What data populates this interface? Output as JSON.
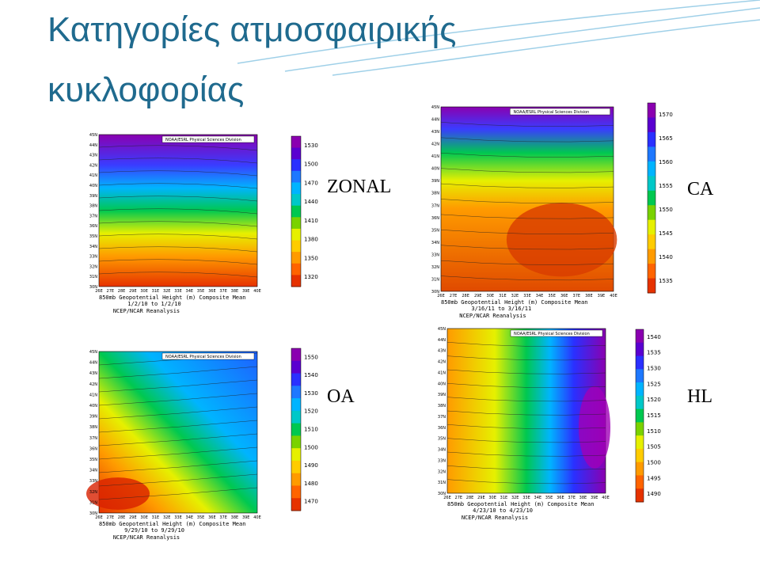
{
  "title": "Κατηγορίες ατμοσφαιρικής κυκλοφορίας",
  "panels": [
    {
      "label": "ZONAL",
      "header": "NOAA/ESRL Physical Sciences Division",
      "caption": "850mb Geopotential Height (m) Composite Mean",
      "dates": "1/2/10 to 1/2/10",
      "source": "NCEP/NCAR Reanalysis",
      "colorbar": [
        "1530",
        "1500",
        "1470",
        "1440",
        "1410",
        "1380",
        "1350",
        "1320"
      ],
      "lat": [
        "45N",
        "44N",
        "43N",
        "42N",
        "41N",
        "40N",
        "39N",
        "38N",
        "37N",
        "36N",
        "35N",
        "34N",
        "33N",
        "32N",
        "31N",
        "30N"
      ],
      "lon": [
        "26E",
        "27E",
        "28E",
        "29E",
        "30E",
        "31E",
        "32E",
        "33E",
        "34E",
        "35E",
        "36E",
        "37E",
        "38E",
        "39E",
        "40E"
      ]
    },
    {
      "label": "CA",
      "header": "NOAA/ESRL Physical Sciences Division",
      "caption": "850mb Geopotential Height (m) Composite Mean",
      "dates": "3/16/11 to 3/16/11",
      "source": "NCEP/NCAR Reanalysis",
      "colorbar": [
        "1570",
        "1565",
        "1560",
        "1555",
        "1550",
        "1545",
        "1540",
        "1535"
      ],
      "lat": [
        "45N",
        "44N",
        "43N",
        "42N",
        "41N",
        "40N",
        "39N",
        "38N",
        "37N",
        "36N",
        "35N",
        "34N",
        "33N",
        "32N",
        "31N",
        "30N"
      ],
      "lon": [
        "26E",
        "27E",
        "28E",
        "29E",
        "30E",
        "31E",
        "32E",
        "33E",
        "34E",
        "35E",
        "36E",
        "37E",
        "38E",
        "39E",
        "40E"
      ]
    },
    {
      "label": "OA",
      "header": "NOAA/ESRL Physical Sciences Division",
      "caption": "850mb Geopotential Height (m) Composite Mean",
      "dates": "9/29/10 to 9/29/10",
      "source": "NCEP/NCAR Reanalysis",
      "colorbar": [
        "1550",
        "1540",
        "1530",
        "1520",
        "1510",
        "1500",
        "1490",
        "1480",
        "1470"
      ],
      "lat": [
        "45N",
        "44N",
        "43N",
        "42N",
        "41N",
        "40N",
        "39N",
        "38N",
        "37N",
        "36N",
        "35N",
        "34N",
        "33N",
        "32N",
        "31N",
        "30N"
      ],
      "lon": [
        "26E",
        "27E",
        "28E",
        "29E",
        "30E",
        "31E",
        "32E",
        "33E",
        "34E",
        "35E",
        "36E",
        "37E",
        "38E",
        "39E",
        "40E"
      ]
    },
    {
      "label": "HL",
      "header": "NOAA/ESRL Physical Sciences Division",
      "caption": "850mb Geopotential Height (m) Composite Mean",
      "dates": "4/23/10 to 4/23/10",
      "source": "NCEP/NCAR Reanalysis",
      "colorbar": [
        "1540",
        "1535",
        "1530",
        "1525",
        "1520",
        "1515",
        "1510",
        "1505",
        "1500",
        "1495",
        "1490"
      ],
      "lat": [
        "45N",
        "44N",
        "43N",
        "42N",
        "41N",
        "40N",
        "39N",
        "38N",
        "37N",
        "36N",
        "35N",
        "34N",
        "33N",
        "32N",
        "31N",
        "30N"
      ],
      "lon": [
        "26E",
        "27E",
        "28E",
        "29E",
        "30E",
        "31E",
        "32E",
        "33E",
        "34E",
        "35E",
        "36E",
        "37E",
        "38E",
        "39E",
        "40E"
      ]
    }
  ]
}
